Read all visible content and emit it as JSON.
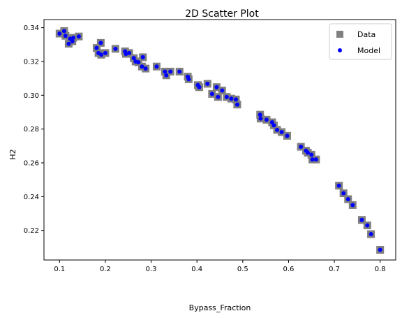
{
  "chart_data": {
    "type": "scatter",
    "title": "2D Scatter Plot",
    "xlabel": "Bypass_Fraction",
    "ylabel": "H2",
    "xlim": [
      0.066,
      0.834
    ],
    "ylim": [
      0.2025,
      0.3448
    ],
    "xticks": [
      0.1,
      0.2,
      0.3,
      0.4,
      0.5,
      0.6,
      0.7,
      0.8
    ],
    "yticks": [
      0.22,
      0.24,
      0.26,
      0.28,
      0.3,
      0.32,
      0.34
    ],
    "grid": false,
    "legend_position": "top-right",
    "series": [
      {
        "name": "Data",
        "marker": "square",
        "color": "#808080",
        "x": [
          0.1,
          0.11,
          0.113,
          0.12,
          0.123,
          0.128,
          0.13,
          0.142,
          0.181,
          0.185,
          0.19,
          0.191,
          0.2,
          0.222,
          0.243,
          0.245,
          0.252,
          0.262,
          0.266,
          0.272,
          0.28,
          0.282,
          0.288,
          0.312,
          0.33,
          0.333,
          0.342,
          0.362,
          0.38,
          0.382,
          0.402,
          0.405,
          0.423,
          0.433,
          0.443,
          0.446,
          0.455,
          0.465,
          0.475,
          0.485,
          0.488,
          0.538,
          0.539,
          0.552,
          0.564,
          0.568,
          0.575,
          0.585,
          0.597,
          0.627,
          0.638,
          0.642,
          0.65,
          0.652,
          0.66,
          0.71,
          0.72,
          0.73,
          0.74,
          0.76,
          0.772,
          0.78,
          0.8
        ],
        "y": [
          0.3365,
          0.338,
          0.3352,
          0.3305,
          0.3335,
          0.332,
          0.334,
          0.3348,
          0.328,
          0.325,
          0.331,
          0.324,
          0.325,
          0.3275,
          0.326,
          0.3245,
          0.325,
          0.322,
          0.32,
          0.3195,
          0.317,
          0.3225,
          0.3158,
          0.317,
          0.314,
          0.3118,
          0.314,
          0.314,
          0.311,
          0.3095,
          0.306,
          0.3048,
          0.3068,
          0.3008,
          0.3048,
          0.299,
          0.3028,
          0.299,
          0.298,
          0.2975,
          0.2945,
          0.2885,
          0.2862,
          0.2855,
          0.284,
          0.2822,
          0.2795,
          0.2782,
          0.276,
          0.2695,
          0.2672,
          0.266,
          0.2648,
          0.262,
          0.262,
          0.2465,
          0.242,
          0.2385,
          0.235,
          0.2262,
          0.223,
          0.2178,
          0.2085
        ]
      },
      {
        "name": "Model",
        "marker": "circle",
        "color": "#0000ff",
        "x": [
          0.1,
          0.11,
          0.113,
          0.12,
          0.123,
          0.128,
          0.13,
          0.142,
          0.181,
          0.185,
          0.19,
          0.191,
          0.2,
          0.222,
          0.243,
          0.245,
          0.252,
          0.262,
          0.266,
          0.272,
          0.28,
          0.282,
          0.288,
          0.312,
          0.33,
          0.333,
          0.342,
          0.362,
          0.38,
          0.382,
          0.402,
          0.405,
          0.423,
          0.433,
          0.443,
          0.446,
          0.455,
          0.465,
          0.475,
          0.485,
          0.488,
          0.538,
          0.539,
          0.552,
          0.564,
          0.568,
          0.575,
          0.585,
          0.597,
          0.627,
          0.638,
          0.642,
          0.65,
          0.652,
          0.66,
          0.71,
          0.72,
          0.73,
          0.74,
          0.76,
          0.772,
          0.78,
          0.8
        ],
        "y": [
          0.3365,
          0.338,
          0.3352,
          0.3305,
          0.3335,
          0.332,
          0.334,
          0.3348,
          0.328,
          0.325,
          0.331,
          0.324,
          0.325,
          0.3275,
          0.326,
          0.3245,
          0.325,
          0.322,
          0.32,
          0.3195,
          0.317,
          0.3225,
          0.3158,
          0.317,
          0.314,
          0.3118,
          0.314,
          0.314,
          0.311,
          0.3095,
          0.306,
          0.3048,
          0.3068,
          0.3008,
          0.3048,
          0.299,
          0.3028,
          0.299,
          0.298,
          0.2975,
          0.2945,
          0.2885,
          0.2862,
          0.2855,
          0.284,
          0.2822,
          0.2795,
          0.2782,
          0.276,
          0.2695,
          0.2672,
          0.266,
          0.2648,
          0.262,
          0.262,
          0.2465,
          0.242,
          0.2385,
          0.235,
          0.2262,
          0.223,
          0.2178,
          0.2085
        ]
      }
    ]
  }
}
